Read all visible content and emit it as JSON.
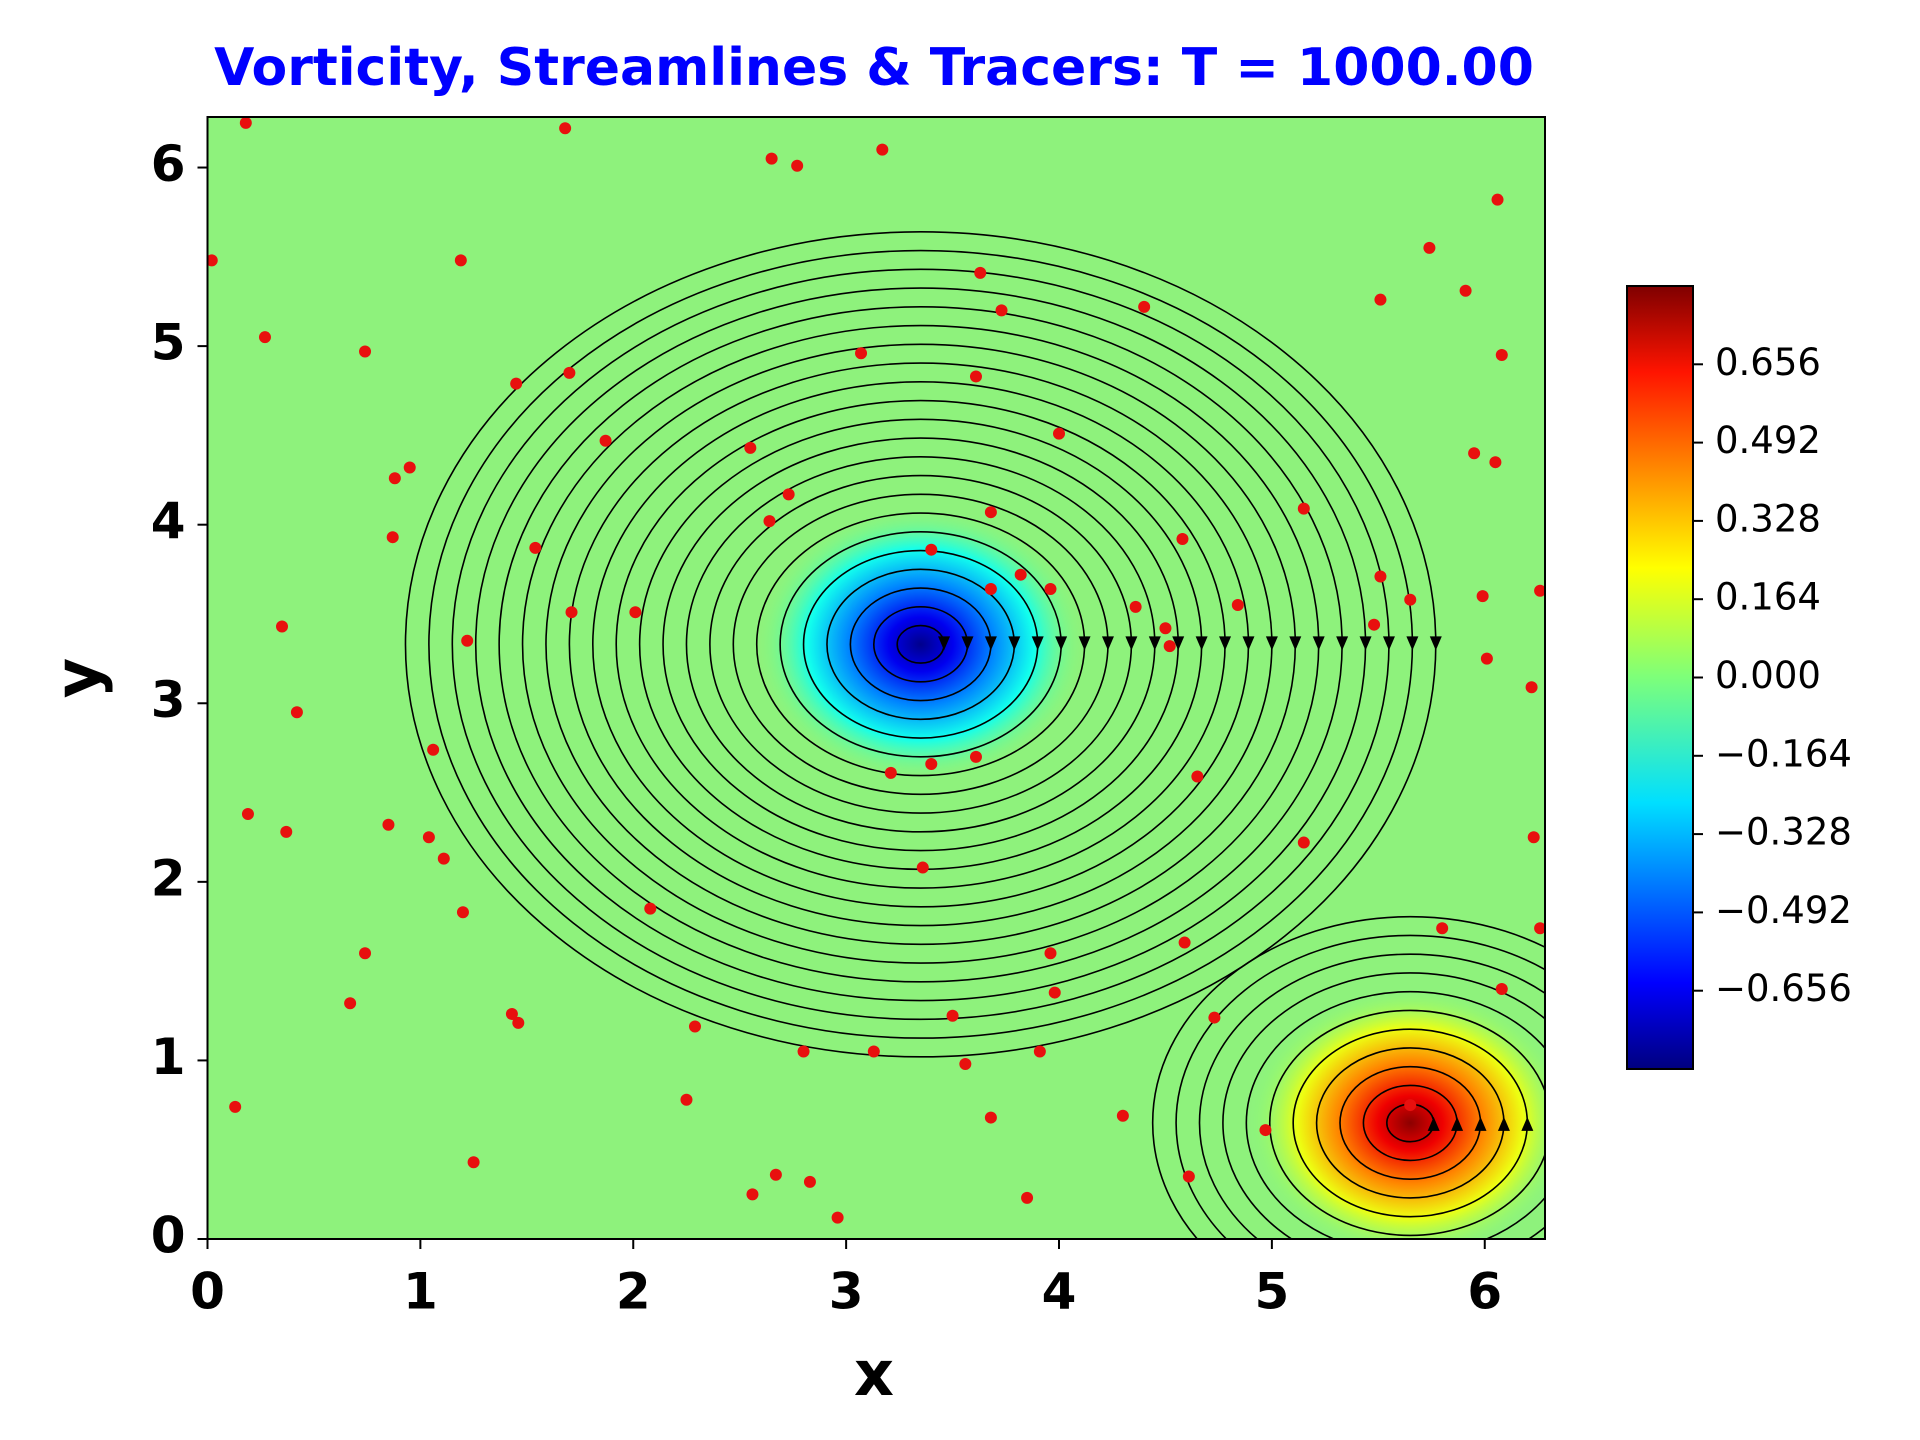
{
  "chart_data": {
    "type": "scatter",
    "title": "Vorticity, Streamlines & Tracers: T = 1000.00",
    "x_label": "x",
    "y_label": "y",
    "xlim": [
      0,
      6.283
    ],
    "ylim": [
      0,
      6.283
    ],
    "xticks": [
      0,
      1,
      2,
      3,
      4,
      5,
      6
    ],
    "yticks": [
      0,
      1,
      2,
      3,
      4,
      5,
      6
    ],
    "color": "#e8100e",
    "x": [
      0.18,
      1.68,
      3.17,
      2.65,
      2.77,
      0.02,
      1.19,
      0.27,
      0.74,
      1.7,
      1.45,
      3.63,
      3.73,
      4.4,
      5.74,
      5.51,
      5.91,
      6.06,
      6.08,
      3.07,
      3.61,
      4.0,
      1.87,
      2.55,
      5.95,
      6.05,
      0.88,
      0.95,
      2.73,
      2.64,
      3.68,
      5.15,
      3.4,
      4.58,
      0.87,
      1.54,
      0.35,
      1.22,
      1.71,
      2.01,
      3.82,
      3.96,
      3.68,
      4.36,
      4.5,
      4.52,
      4.84,
      5.51,
      5.65,
      5.48,
      5.99,
      6.26,
      6.01,
      6.22,
      0.42,
      1.06,
      3.61,
      3.4,
      3.21,
      4.65,
      0.19,
      0.37,
      0.85,
      1.04,
      1.11,
      5.15,
      6.23,
      3.36,
      1.2,
      2.08,
      5.8,
      6.26,
      4.59,
      0.74,
      3.96,
      6.08,
      0.67,
      1.43,
      1.46,
      3.5,
      3.98,
      4.73,
      2.29,
      2.8,
      3.13,
      3.91,
      3.56,
      0.13,
      2.25,
      3.68,
      4.3,
      4.97,
      1.25,
      2.67,
      2.83,
      4.61,
      2.56,
      3.85,
      2.96,
      5.65
    ],
    "y": [
      6.25,
      6.22,
      6.1,
      6.05,
      6.01,
      5.48,
      5.48,
      5.05,
      4.97,
      4.85,
      4.79,
      5.41,
      5.2,
      5.22,
      5.55,
      5.26,
      5.31,
      5.82,
      4.95,
      4.96,
      4.83,
      4.51,
      4.47,
      4.43,
      4.4,
      4.35,
      4.26,
      4.32,
      4.17,
      4.02,
      4.07,
      4.09,
      3.86,
      3.92,
      3.93,
      3.87,
      3.43,
      3.35,
      3.51,
      3.51,
      3.72,
      3.64,
      3.64,
      3.54,
      3.42,
      3.32,
      3.55,
      3.71,
      3.58,
      3.44,
      3.6,
      3.63,
      3.25,
      3.09,
      2.95,
      2.74,
      2.7,
      2.66,
      2.61,
      2.59,
      2.38,
      2.28,
      2.32,
      2.25,
      2.13,
      2.22,
      2.25,
      2.08,
      1.83,
      1.85,
      1.74,
      1.74,
      1.66,
      1.6,
      1.6,
      1.4,
      1.32,
      1.26,
      1.21,
      1.25,
      1.38,
      1.24,
      1.19,
      1.05,
      1.05,
      1.05,
      0.98,
      0.74,
      0.78,
      0.68,
      0.69,
      0.61,
      0.43,
      0.36,
      0.32,
      0.35,
      0.25,
      0.23,
      0.12,
      0.75
    ],
    "vortices": [
      {
        "x": 3.35,
        "y": 3.33,
        "value": -0.8
      },
      {
        "x": 5.65,
        "y": 0.65,
        "value": 0.8
      }
    ],
    "colorbar": {
      "clim": [
        -0.82,
        0.82
      ],
      "ticks": [
        {
          "value": -0.656,
          "label": "−0.656"
        },
        {
          "value": -0.492,
          "label": "−0.492"
        },
        {
          "value": -0.328,
          "label": "−0.328"
        },
        {
          "value": -0.164,
          "label": "−0.164"
        },
        {
          "value": 0,
          "label": "0.000"
        },
        0.164,
        0.328,
        0.492,
        0.656
      ]
    }
  }
}
